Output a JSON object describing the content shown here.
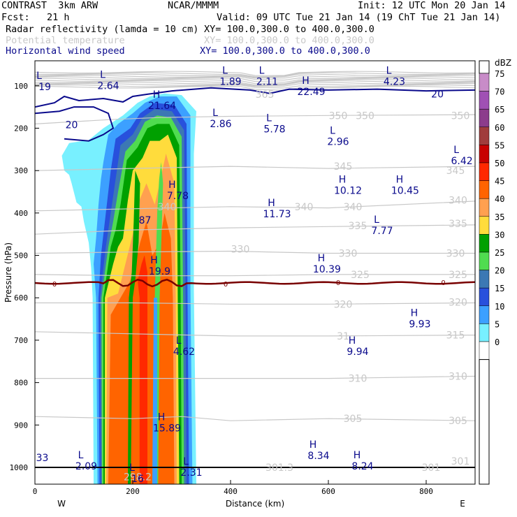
{
  "header": {
    "model": "CONTRAST  3km ARW",
    "org": "NCAR/MMMM",
    "init": "Init: 12 UTC Mon 20 Jan 14",
    "fcst": "Fcst:   21 h",
    "valid": "Valid: 09 UTC Tue 21 Jan 14 (19 ChT Tue 21 Jan 14)",
    "fields": [
      {
        "name": "Radar reflectivity (lamda = 10 cm)",
        "xy": "XY= 100.0,300.0 to 400.0,300.0",
        "color": "#000000"
      },
      {
        "name": "Potential temperature",
        "xy": "XY= 100.0,300.0 to 400.0,300.0",
        "color": "#c8c8c8"
      },
      {
        "name": "Horizontal wind speed",
        "xy": "XY= 100.0,300.0 to 400.0,300.0",
        "color": "#0a0a8c"
      }
    ]
  },
  "chart_data": {
    "type": "heatmap",
    "title": "Radar reflectivity (lamda = 10 cm)",
    "xlabel": "Distance (km)",
    "ylabel": "Pressure (hPa)",
    "xlim": [
      0,
      900
    ],
    "ylim": [
      1050,
      60
    ],
    "x_ticks": [
      "0",
      "200",
      "400",
      "600",
      "800"
    ],
    "y_ticks": [
      "100",
      "200",
      "300",
      "400",
      "500",
      "600",
      "700",
      "800",
      "900",
      "1000"
    ],
    "x_end_labels": {
      "left": "W",
      "right": "E"
    },
    "colorbar": {
      "unit": "dBZ",
      "levels": [
        75,
        70,
        65,
        60,
        55,
        50,
        45,
        40,
        35,
        30,
        25,
        20,
        15,
        10,
        5,
        0
      ],
      "colors": [
        "#c88cc8",
        "#a050b4",
        "#8c3c8c",
        "#a03c3c",
        "#c80000",
        "#ff2800",
        "#ff6400",
        "#ffa050",
        "#ffdc3c",
        "#00a000",
        "#50dc50",
        "#3c78b4",
        "#2850dc",
        "#3ca0ff",
        "#78f0ff",
        "#ffffff"
      ]
    },
    "theta_labels": [
      {
        "x": 470,
        "p": 120,
        "t": "365"
      },
      {
        "x": 620,
        "p": 170,
        "t": "350"
      },
      {
        "x": 675,
        "p": 170,
        "t": "350"
      },
      {
        "x": 870,
        "p": 170,
        "t": "350"
      },
      {
        "x": 630,
        "p": 290,
        "t": "345"
      },
      {
        "x": 860,
        "p": 300,
        "t": "345"
      },
      {
        "x": 270,
        "p": 385,
        "t": "340"
      },
      {
        "x": 550,
        "p": 385,
        "t": "340"
      },
      {
        "x": 650,
        "p": 385,
        "t": "340"
      },
      {
        "x": 865,
        "p": 370,
        "t": "340"
      },
      {
        "x": 660,
        "p": 430,
        "t": "335"
      },
      {
        "x": 865,
        "p": 425,
        "t": "335"
      },
      {
        "x": 420,
        "p": 485,
        "t": "330"
      },
      {
        "x": 640,
        "p": 495,
        "t": "330"
      },
      {
        "x": 860,
        "p": 495,
        "t": "330"
      },
      {
        "x": 665,
        "p": 545,
        "t": "325"
      },
      {
        "x": 865,
        "p": 545,
        "t": "325"
      },
      {
        "x": 630,
        "p": 615,
        "t": "320"
      },
      {
        "x": 865,
        "p": 610,
        "t": "320"
      },
      {
        "x": 860,
        "p": 688,
        "t": "315"
      },
      {
        "x": 630,
        "p": 690,
        "t": "31"
      },
      {
        "x": 660,
        "p": 790,
        "t": "310"
      },
      {
        "x": 865,
        "p": 785,
        "t": "310"
      },
      {
        "x": 650,
        "p": 885,
        "t": "305"
      },
      {
        "x": 865,
        "p": 890,
        "t": "305"
      },
      {
        "x": 500,
        "p": 1000,
        "t": "301.3"
      },
      {
        "x": 810,
        "p": 1000,
        "t": "301"
      },
      {
        "x": 870,
        "p": 985,
        "t": "301"
      },
      {
        "x": 210,
        "p": 1022,
        "t": "298.2"
      }
    ],
    "zero_isotherm_labels": [
      {
        "x": 40,
        "p": 567,
        "t": "0"
      },
      {
        "x": 390,
        "p": 567,
        "t": "0"
      },
      {
        "x": 620,
        "p": 563,
        "t": "0"
      },
      {
        "x": 835,
        "p": 563,
        "t": "0"
      }
    ],
    "wind_labels": [
      {
        "x": 20,
        "p": 100,
        "k": "L",
        "v": "19"
      },
      {
        "x": 150,
        "p": 98,
        "k": "L",
        "v": "2.64"
      },
      {
        "x": 400,
        "p": 88,
        "k": "L",
        "v": "1.89"
      },
      {
        "x": 475,
        "p": 88,
        "k": "L",
        "v": "2.11"
      },
      {
        "x": 565,
        "p": 112,
        "k": "H",
        "v": "22.49"
      },
      {
        "x": 735,
        "p": 88,
        "k": "L",
        "v": "4.23"
      },
      {
        "x": 823,
        "p": 118,
        "k": "",
        "v": "20"
      },
      {
        "x": 260,
        "p": 145,
        "k": "H",
        "v": "21.64"
      },
      {
        "x": 75,
        "p": 190,
        "k": "",
        "v": "20"
      },
      {
        "x": 380,
        "p": 188,
        "k": "L",
        "v": "2.86"
      },
      {
        "x": 490,
        "p": 200,
        "k": "L",
        "v": "5.78"
      },
      {
        "x": 620,
        "p": 230,
        "k": "L",
        "v": "2.96"
      },
      {
        "x": 873,
        "p": 275,
        "k": "L",
        "v": "6.42"
      },
      {
        "x": 292,
        "p": 357,
        "k": "H",
        "v": "7.78"
      },
      {
        "x": 640,
        "p": 345,
        "k": "H",
        "v": "10.12"
      },
      {
        "x": 757,
        "p": 345,
        "k": "H",
        "v": "10.45"
      },
      {
        "x": 495,
        "p": 400,
        "k": "H",
        "v": "11.73"
      },
      {
        "x": 710,
        "p": 440,
        "k": "L",
        "v": "7.77"
      },
      {
        "x": 225,
        "p": 415,
        "k": "",
        "v": "87"
      },
      {
        "x": 255,
        "p": 535,
        "k": "H",
        "v": "19.9"
      },
      {
        "x": 597,
        "p": 530,
        "k": "H",
        "v": "10.39"
      },
      {
        "x": 787,
        "p": 660,
        "k": "H",
        "v": "9.93"
      },
      {
        "x": 305,
        "p": 725,
        "k": "L",
        "v": "4.62"
      },
      {
        "x": 660,
        "p": 725,
        "k": "H",
        "v": "9.94"
      },
      {
        "x": 270,
        "p": 905,
        "k": "H",
        "v": "15.89"
      },
      {
        "x": 15,
        "p": 975,
        "k": "",
        "v": "33"
      },
      {
        "x": 105,
        "p": 995,
        "k": "L",
        "v": "2.09"
      },
      {
        "x": 580,
        "p": 970,
        "k": "H",
        "v": "8.34"
      },
      {
        "x": 670,
        "p": 995,
        "k": "H",
        "v": "8.24"
      },
      {
        "x": 210,
        "p": 1025,
        "k": "L",
        "v": "16"
      },
      {
        "x": 320,
        "p": 1010,
        "k": "L",
        "v": "2.31"
      }
    ],
    "colors": {
      "theta": "#c8c8c8",
      "wind": "#0a0a8c",
      "zero_isotherm": "#780000"
    }
  }
}
